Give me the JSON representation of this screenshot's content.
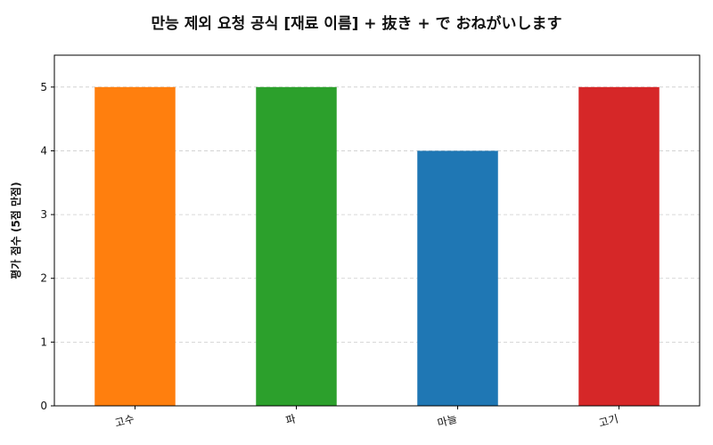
{
  "chart_data": {
    "type": "bar",
    "title": "만능 제외 요청 공식 [재료 이름] + 抜き + で おねがいします",
    "xlabel": "",
    "ylabel": "평가 점수 (5점 만점)",
    "categories": [
      "고수",
      "파",
      "마늘",
      "고기"
    ],
    "values": [
      5,
      5,
      4,
      5
    ],
    "bar_colors": [
      "#ff7f0e",
      "#2ca02c",
      "#1f77b4",
      "#d62728"
    ],
    "ylim": [
      0,
      5.5
    ],
    "yticks": [
      0,
      1,
      2,
      3,
      4,
      5
    ],
    "grid": "horizontal dashed",
    "legend": "none"
  }
}
